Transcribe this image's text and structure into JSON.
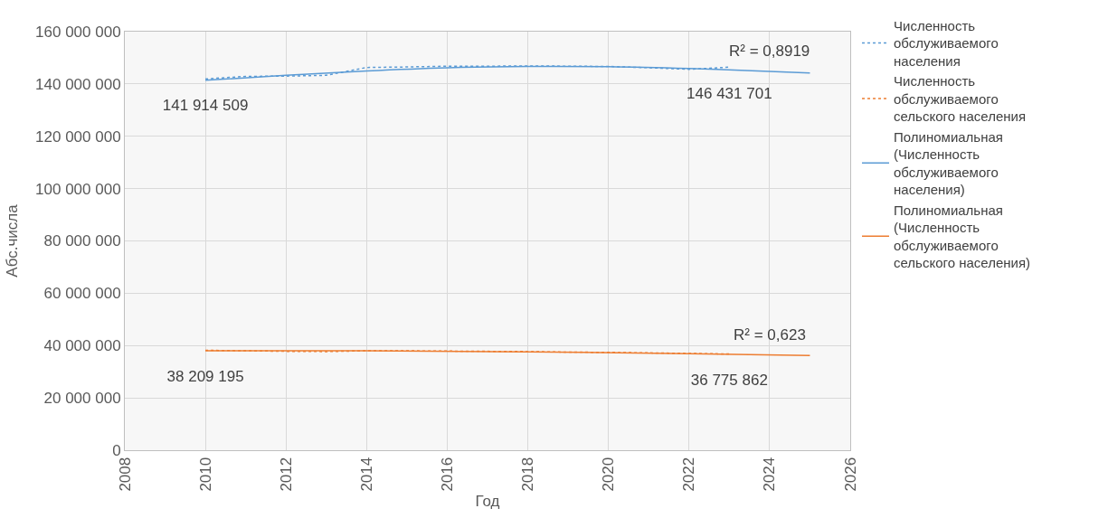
{
  "chart_data": {
    "type": "line",
    "xlabel": "Год",
    "ylabel": "Абс.числа",
    "xlim": [
      2008,
      2026
    ],
    "xticks": [
      2008,
      2010,
      2012,
      2014,
      2016,
      2018,
      2020,
      2022,
      2024,
      2026
    ],
    "ylim": [
      0,
      160000000
    ],
    "yticks": [
      {
        "value": 0,
        "label": "0"
      },
      {
        "value": 20000000,
        "label": "20 000 000"
      },
      {
        "value": 40000000,
        "label": "40 000 000"
      },
      {
        "value": 60000000,
        "label": "60 000 000"
      },
      {
        "value": 80000000,
        "label": "80 000 000"
      },
      {
        "value": 100000000,
        "label": "100 000 000"
      },
      {
        "value": 120000000,
        "label": "120 000 000"
      },
      {
        "value": 140000000,
        "label": "140 000 000"
      },
      {
        "value": 160000000,
        "label": "160 000 000"
      }
    ],
    "grid": true,
    "legend": "right",
    "marker": "none",
    "x": [
      2010,
      2011,
      2012,
      2013,
      2014,
      2015,
      2016,
      2017,
      2018,
      2019,
      2020,
      2021,
      2022,
      2023
    ],
    "series": [
      {
        "name": "Численность обслуживаемого населения",
        "color": "#5b9bd5",
        "line_style": "dotted",
        "values": [
          141914509,
          142900000,
          143000000,
          143300000,
          146300000,
          146500000,
          146800000,
          146800000,
          146900000,
          146800000,
          146700000,
          146200000,
          145600000,
          146431701
        ],
        "value_labels": [
          "141 914 509",
          null,
          null,
          null,
          null,
          null,
          null,
          null,
          null,
          null,
          null,
          null,
          null,
          "146 431 701"
        ]
      },
      {
        "name": "Численность обслуживаемого сельского населения",
        "color": "#ed7d31",
        "line_style": "dotted",
        "values": [
          38209195,
          38000000,
          37800000,
          37700000,
          38000000,
          38000000,
          37900000,
          37800000,
          37700000,
          37500000,
          37400000,
          37200000,
          37000000,
          36775862
        ],
        "value_labels": [
          "38 209 195",
          null,
          null,
          null,
          null,
          null,
          null,
          null,
          null,
          null,
          null,
          null,
          null,
          "36 775 862"
        ]
      },
      {
        "name": "Полиномиальная (Численность обслуживаемого населения)",
        "color": "#5b9bd5",
        "line_style": "solid",
        "x": [
          2010,
          2012,
          2014,
          2016,
          2018,
          2020,
          2022,
          2024,
          2025
        ],
        "values": [
          141400000,
          143300000,
          145000000,
          146200000,
          146700000,
          146600000,
          145900000,
          144800000,
          144200000
        ]
      },
      {
        "name": "Полиномиальная (Численность обслуживаемого сельского населения)",
        "color": "#ed7d31",
        "line_style": "solid",
        "x": [
          2010,
          2014,
          2018,
          2022,
          2025
        ],
        "values": [
          38000000,
          38000000,
          37600000,
          36900000,
          36200000
        ]
      }
    ],
    "annotations": [
      {
        "text": "R² = 0,8919",
        "x": 2024,
        "y": 144800000
      },
      {
        "text": "R² = 0,623",
        "x": 2024,
        "y": 36500000
      }
    ]
  }
}
